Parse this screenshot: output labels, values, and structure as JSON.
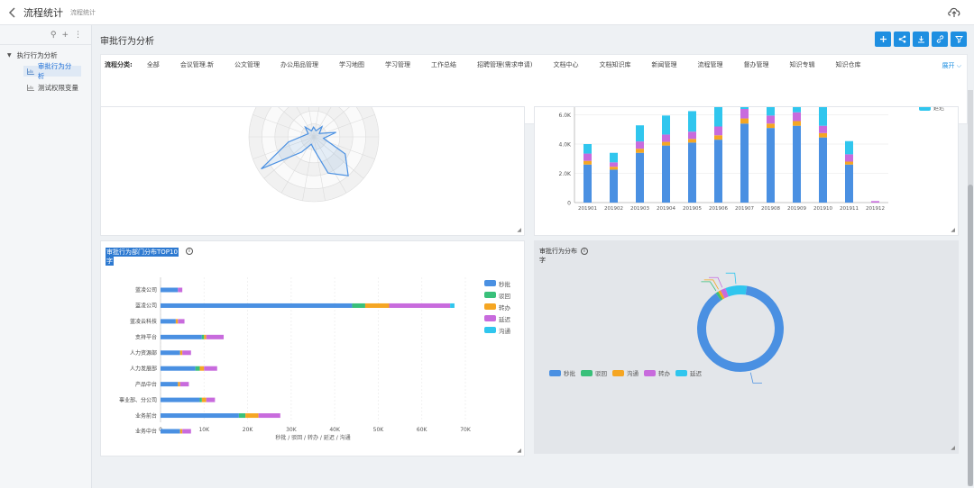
{
  "app": {
    "title": "流程统计",
    "subtitle": "流程统计"
  },
  "sidebar": {
    "tools": [
      "⚲",
      "+",
      "⋮"
    ],
    "root": "执行行为分析",
    "items": [
      {
        "label": "审批行为分析",
        "active": true
      },
      {
        "label": "测试权限变量",
        "active": false
      }
    ]
  },
  "main": {
    "title": "审批行为分析"
  },
  "toolbar": {
    "icons": [
      "add-icon",
      "share-icon",
      "download-icon",
      "link-icon",
      "filter-icon"
    ]
  },
  "filter": {
    "label": "流程分类:",
    "items": [
      "全部",
      "会议管理.新",
      "公文管理",
      "办公用品管理",
      "学习地图",
      "学习管理",
      "工作总结",
      "招聘管理(需求申请)",
      "文档中心",
      "文档知识库",
      "新闻管理",
      "流程管理",
      "督办管理",
      "知识专辑",
      "知识仓库"
    ],
    "expand": "展开"
  },
  "colors": {
    "blue": "#4a90e2",
    "green": "#39c07a",
    "orange": "#f5a623",
    "purple": "#c86bdd",
    "cyan": "#30c6ee"
  },
  "monthly_chart": {
    "legend_partial": "延迟",
    "chart_data": {
      "type": "bar",
      "stacked": true,
      "categories": [
        "201901",
        "201902",
        "201903",
        "201904",
        "201905",
        "201906",
        "201907",
        "201908",
        "201909",
        "201910",
        "201911",
        "201912"
      ],
      "yticks": [
        "0",
        "2.0K",
        "4.0K",
        "6.0K"
      ],
      "ylim": [
        0,
        6800
      ],
      "series": [
        {
          "key": "blue",
          "values": [
            2600,
            2250,
            3400,
            3900,
            4100,
            4300,
            5400,
            5100,
            5250,
            4450,
            2600,
            0
          ]
        },
        {
          "key": "orange",
          "values": [
            250,
            200,
            280,
            250,
            250,
            300,
            350,
            300,
            320,
            300,
            200,
            0
          ]
        },
        {
          "key": "purple",
          "values": [
            500,
            300,
            500,
            500,
            500,
            600,
            650,
            550,
            600,
            500,
            500,
            100
          ]
        },
        {
          "key": "cyan",
          "values": [
            650,
            650,
            1100,
            1300,
            1400,
            1400,
            1400,
            1400,
            1400,
            1450,
            900,
            0
          ]
        }
      ]
    }
  },
  "dept_chart": {
    "title_line1": "审批行为部门分布TOP10",
    "title_line2": "字",
    "legend": [
      "秒批",
      "驳回",
      "转办",
      "延迟",
      "沟通"
    ],
    "chart_data": {
      "type": "bar",
      "orientation": "horizontal",
      "stacked": true,
      "categories": [
        "蓝凌公司",
        "蓝凌公司",
        "蓝凌云科技",
        "支持平台",
        "人力资源部",
        "人力发展部",
        "产品中台",
        "事业部、分公司",
        "业务前台",
        "业务中台"
      ],
      "xticks": [
        "0",
        "10K",
        "20K",
        "30K",
        "40K",
        "50K",
        "60K",
        "70K"
      ],
      "xlabel": "秒批 / 驳回 / 转办 / 延迟 / 沟通",
      "xlim": [
        0,
        70000
      ],
      "series": [
        {
          "name": "秒批",
          "key": "blue",
          "values": [
            4000,
            44000,
            3500,
            9500,
            4500,
            8000,
            4000,
            9000,
            18000,
            4500
          ]
        },
        {
          "name": "驳回",
          "key": "green",
          "values": [
            0,
            3000,
            0,
            500,
            0,
            1000,
            0,
            500,
            1500,
            0
          ]
        },
        {
          "name": "转办",
          "key": "orange",
          "values": [
            0,
            5500,
            500,
            500,
            500,
            1000,
            500,
            1000,
            3000,
            500
          ]
        },
        {
          "name": "延迟",
          "key": "purple",
          "values": [
            1000,
            14000,
            1500,
            4000,
            2000,
            3000,
            2000,
            2000,
            5000,
            2000
          ]
        },
        {
          "name": "沟通",
          "key": "cyan",
          "values": [
            0,
            1000,
            0,
            0,
            0,
            0,
            0,
            0,
            0,
            0
          ]
        }
      ]
    }
  },
  "behavior_chart": {
    "title": "审批行为分布",
    "subtitle": "字",
    "legend": [
      "秒批",
      "驳回",
      "沟通",
      "转办",
      "延迟"
    ],
    "chart_data": {
      "type": "pie",
      "donut": true,
      "slices": [
        {
          "label": "秒批",
          "key": "blue",
          "value": 88
        },
        {
          "label": "驳回",
          "key": "green",
          "value": 1
        },
        {
          "label": "沟通",
          "key": "orange",
          "value": 1
        },
        {
          "label": "转办",
          "key": "purple",
          "value": 2
        },
        {
          "label": "延迟",
          "key": "cyan",
          "value": 8
        }
      ]
    }
  }
}
